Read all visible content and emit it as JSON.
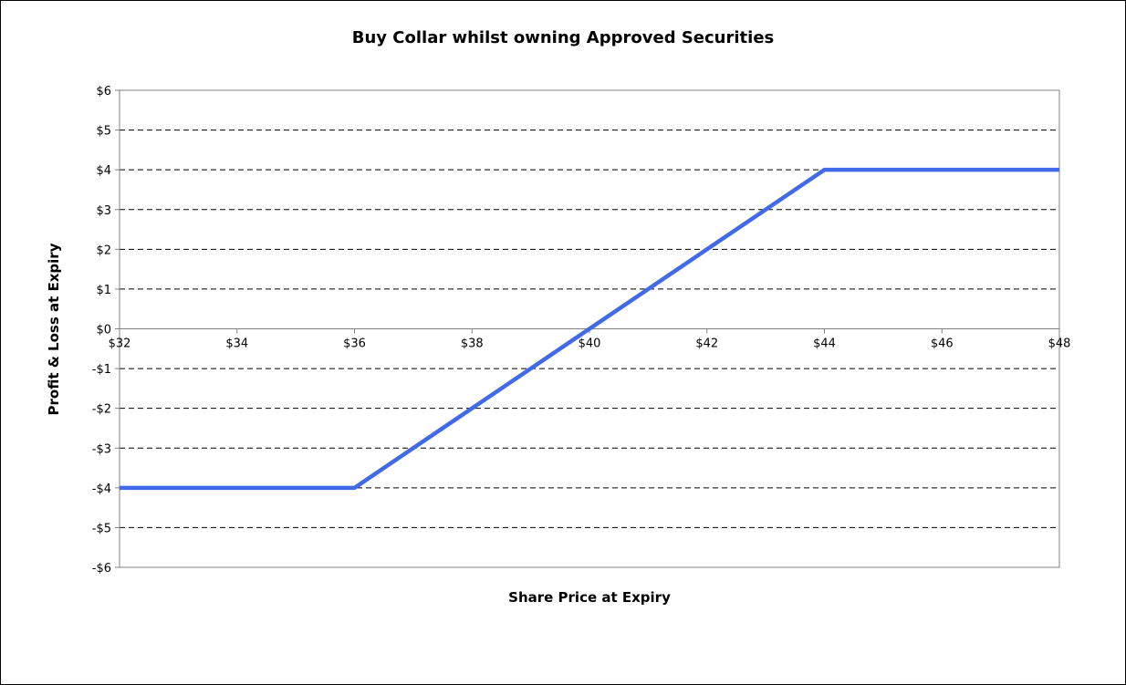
{
  "chart_data": {
    "type": "line",
    "title": "Buy Collar whilst owning Approved Securities",
    "xlabel": "Share Price at Expiry",
    "ylabel": "Profit & Loss at Expiry",
    "xlim": [
      32,
      48
    ],
    "ylim": [
      -6,
      6
    ],
    "x_ticks": [
      32,
      34,
      36,
      38,
      40,
      42,
      44,
      46,
      48
    ],
    "x_tick_labels": [
      "$32",
      "$34",
      "$36",
      "$38",
      "$40",
      "$42",
      "$44",
      "$46",
      "$48"
    ],
    "y_ticks": [
      6,
      5,
      4,
      3,
      2,
      1,
      0,
      -1,
      -2,
      -3,
      -4,
      -5,
      -6
    ],
    "y_tick_labels": [
      "$6",
      "$5",
      "$4",
      "$3",
      "$2",
      "$1",
      "$0",
      "-$1",
      "-$2",
      "-$3",
      "-$4",
      "-$5",
      "-$6"
    ],
    "grid": "horizontal dashed",
    "legend": "none",
    "series": [
      {
        "color": "#4169E8",
        "x": [
          32,
          36,
          40,
          44,
          48
        ],
        "y": [
          -4,
          -4,
          0,
          4,
          4
        ]
      }
    ]
  }
}
